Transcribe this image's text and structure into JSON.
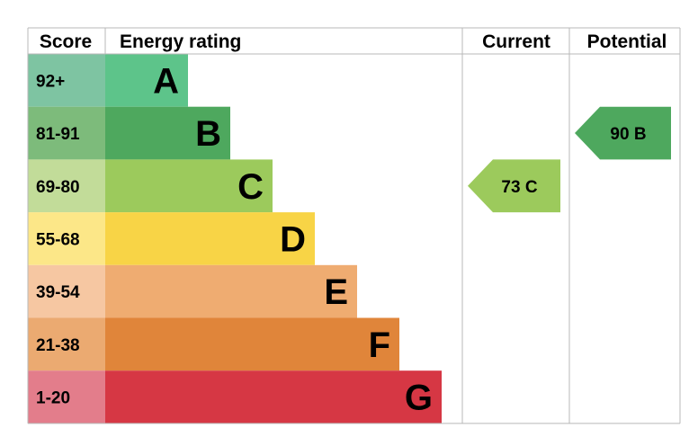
{
  "chart_data": {
    "type": "bar",
    "headers": {
      "score": "Score",
      "rating": "Energy rating",
      "current": "Current",
      "potential": "Potential"
    },
    "bands": [
      {
        "range": "92+",
        "letter": "A",
        "min": 92,
        "color_score": "#7ec4a2",
        "color_bar": "#5dc48a"
      },
      {
        "range": "81-91",
        "letter": "B",
        "min": 81,
        "color_score": "#7dbb7b",
        "color_bar": "#4ea85e"
      },
      {
        "range": "69-80",
        "letter": "C",
        "min": 69,
        "color_score": "#c2dc99",
        "color_bar": "#9cca5c"
      },
      {
        "range": "55-68",
        "letter": "D",
        "min": 55,
        "color_score": "#fce788",
        "color_bar": "#f8d446"
      },
      {
        "range": "39-54",
        "letter": "E",
        "min": 39,
        "color_score": "#f6c7a2",
        "color_bar": "#efac71"
      },
      {
        "range": "21-38",
        "letter": "F",
        "min": 21,
        "color_score": "#ebaa71",
        "color_bar": "#e0853a"
      },
      {
        "range": "1-20",
        "letter": "G",
        "min": 1,
        "color_score": "#e37d8b",
        "color_bar": "#d63744"
      }
    ],
    "current": {
      "value": 73,
      "letter": "C",
      "color": "#9cca5c"
    },
    "potential": {
      "value": 90,
      "letter": "B",
      "color": "#4ea85e"
    }
  }
}
